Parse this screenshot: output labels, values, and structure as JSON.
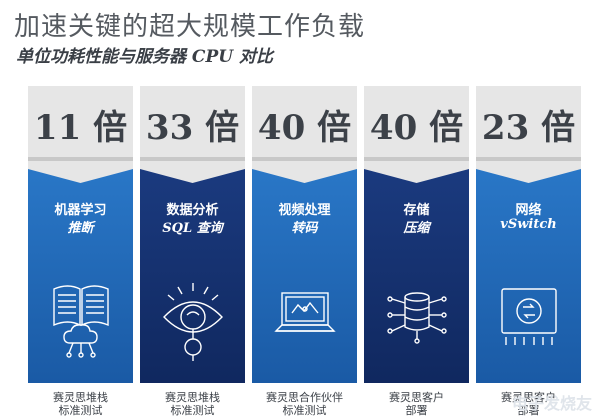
{
  "header": {
    "title": "加速关键的超大规模工作负载",
    "subtitle": "单位功耗性能与服务器 CPU 对比"
  },
  "cards": [
    {
      "value": "11 倍",
      "label_main": "机器学习",
      "label_sub": "推断",
      "caption_1": "赛灵思堆栈",
      "caption_2": "标准测试",
      "icon": "book-cloud-icon",
      "color": "#1f67b6"
    },
    {
      "value": "33 倍",
      "label_main": "数据分析",
      "label_sub": "SQL 查询",
      "caption_1": "赛灵思堆栈",
      "caption_2": "标准测试",
      "icon": "eye-magnifier-icon",
      "color": "#14306c"
    },
    {
      "value": "40 倍",
      "label_main": "视频处理",
      "label_sub": "转码",
      "caption_1": "赛灵思合作伙伴",
      "caption_2": "标准测试",
      "icon": "laptop-icon",
      "color": "#1f67b6"
    },
    {
      "value": "40 倍",
      "label_main": "存储",
      "label_sub": "压缩",
      "caption_1": "赛灵思客户",
      "caption_2": "部署",
      "icon": "database-network-icon",
      "color": "#14306c"
    },
    {
      "value": "23 倍",
      "label_main": "网络",
      "label_sub": "vSwitch",
      "caption_1": "赛灵思客户",
      "caption_2": "部署",
      "icon": "network-switch-icon",
      "color": "#1f67b6"
    }
  ],
  "watermark": "电子发烧友"
}
